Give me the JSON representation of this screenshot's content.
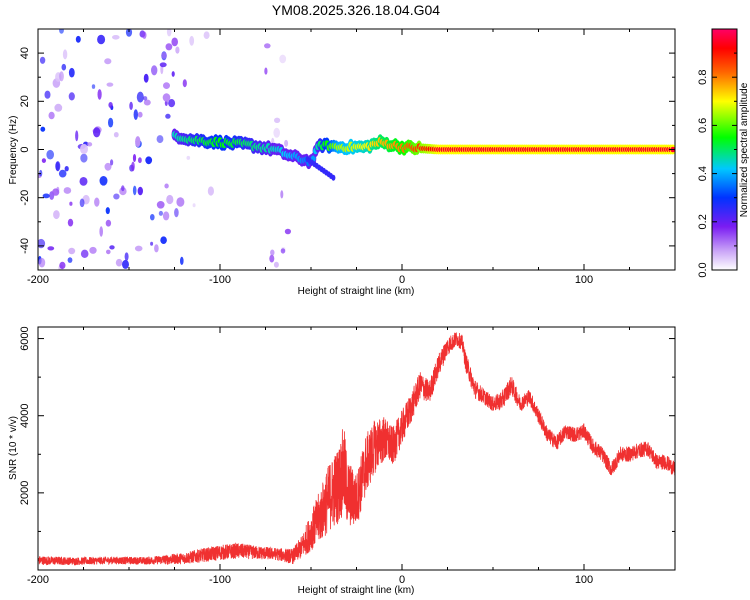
{
  "figure": {
    "title": "YM08.2025.326.18.04.G04"
  },
  "chart_data": [
    {
      "type": "heatmap",
      "name": "spectrogram",
      "xlabel": "Height of straight line (km)",
      "ylabel": "Frequency (Hz)",
      "xlim": [
        -200,
        150
      ],
      "ylim": [
        -50,
        50
      ],
      "xticks": [
        -200,
        -100,
        0,
        100
      ],
      "yticks": [
        -40,
        -20,
        0,
        20,
        40
      ],
      "colorbar": {
        "label": "Normalized spectral amplitude",
        "range": [
          0,
          1
        ],
        "ticks": [
          0.0,
          0.2,
          0.4,
          0.6,
          0.8
        ],
        "tick_labels": [
          "0.0",
          "0.2",
          "0.4",
          "0.6",
          "0.8"
        ],
        "colors": [
          "#ffffff",
          "#7a1cf2",
          "#0033ff",
          "#00c8ff",
          "#00ff00",
          "#ffff00",
          "#ff6600",
          "#ff0000",
          "#ff0066"
        ]
      },
      "noise_regions": [
        {
          "x_range": [
            -200,
            -118
          ],
          "freq_range": [
            -50,
            50
          ],
          "amplitude": [
            0.05,
            0.3
          ]
        },
        {
          "x_range": [
            -118,
            -100
          ],
          "freq_range": [
            -50,
            50
          ],
          "amplitude": [
            0.02,
            0.08
          ]
        },
        {
          "x_range": [
            -78,
            -62
          ],
          "freq_range": [
            -50,
            50
          ],
          "amplitude": [
            0.02,
            0.2
          ]
        }
      ],
      "signal_ridge": [
        {
          "x": -125,
          "freq": 6,
          "amplitude": 0.45
        },
        {
          "x": -115,
          "freq": 4,
          "amplitude": 0.5
        },
        {
          "x": -100,
          "freq": 3,
          "amplitude": 0.55
        },
        {
          "x": -85,
          "freq": 2,
          "amplitude": 0.5
        },
        {
          "x": -70,
          "freq": 0,
          "amplitude": 0.45
        },
        {
          "x": -60,
          "freq": -3,
          "amplitude": 0.4
        },
        {
          "x": -50,
          "freq": -5,
          "amplitude": 0.35
        },
        {
          "x": -45,
          "freq": 2,
          "amplitude": 0.5
        },
        {
          "x": -35,
          "freq": 1,
          "amplitude": 0.65
        },
        {
          "x": -20,
          "freq": 1,
          "amplitude": 0.7
        },
        {
          "x": -12,
          "freq": 3,
          "amplitude": 0.75
        },
        {
          "x": 0,
          "freq": 1,
          "amplitude": 0.8
        },
        {
          "x": 20,
          "freq": 0,
          "amplitude": 0.95
        },
        {
          "x": 60,
          "freq": 0,
          "amplitude": 0.95
        },
        {
          "x": 100,
          "freq": 0,
          "amplitude": 0.95
        },
        {
          "x": 150,
          "freq": 0,
          "amplitude": 0.95
        }
      ]
    },
    {
      "type": "line",
      "name": "snr",
      "xlabel": "Height of straight line (km)",
      "ylabel": "SNR (10 * v/v)",
      "xlim": [
        -200,
        150
      ],
      "ylim": [
        0,
        6300
      ],
      "xticks": [
        -200,
        -100,
        0,
        100
      ],
      "yticks": [
        2000,
        4000,
        6000
      ],
      "color": "#f03030",
      "series": [
        {
          "name": "SNR",
          "x": [
            -200,
            -180,
            -160,
            -140,
            -120,
            -110,
            -100,
            -90,
            -80,
            -70,
            -60,
            -55,
            -50,
            -45,
            -40,
            -35,
            -32,
            -30,
            -25,
            -20,
            -15,
            -10,
            -5,
            0,
            5,
            10,
            15,
            20,
            25,
            30,
            33,
            35,
            40,
            45,
            50,
            55,
            60,
            65,
            70,
            75,
            80,
            85,
            90,
            95,
            100,
            105,
            110,
            115,
            120,
            125,
            130,
            135,
            140,
            145,
            150
          ],
          "y": [
            250,
            230,
            250,
            240,
            300,
            380,
            450,
            500,
            450,
            420,
            350,
            600,
            1000,
            1400,
            1900,
            2200,
            2600,
            2000,
            1800,
            2700,
            3200,
            3400,
            3200,
            3700,
            4200,
            4800,
            4600,
            5300,
            5800,
            6000,
            5900,
            5400,
            4700,
            4500,
            4300,
            4400,
            4800,
            4300,
            4500,
            4000,
            3500,
            3300,
            3600,
            3500,
            3600,
            3200,
            3000,
            2600,
            3000,
            3000,
            3100,
            3150,
            2800,
            2800,
            2600
          ],
          "noise_amplitude": [
            120,
            100,
            100,
            100,
            150,
            180,
            200,
            200,
            180,
            160,
            200,
            300,
            500,
            700,
            900,
            1000,
            1200,
            900,
            700,
            800,
            700,
            600,
            500,
            450,
            400,
            350,
            300,
            300,
            250,
            200,
            200,
            250,
            250,
            200,
            200,
            250,
            250,
            200,
            200,
            200,
            200,
            200,
            200,
            200,
            200,
            200,
            200,
            200,
            200,
            200,
            200,
            200,
            200,
            200,
            200
          ]
        }
      ]
    }
  ]
}
